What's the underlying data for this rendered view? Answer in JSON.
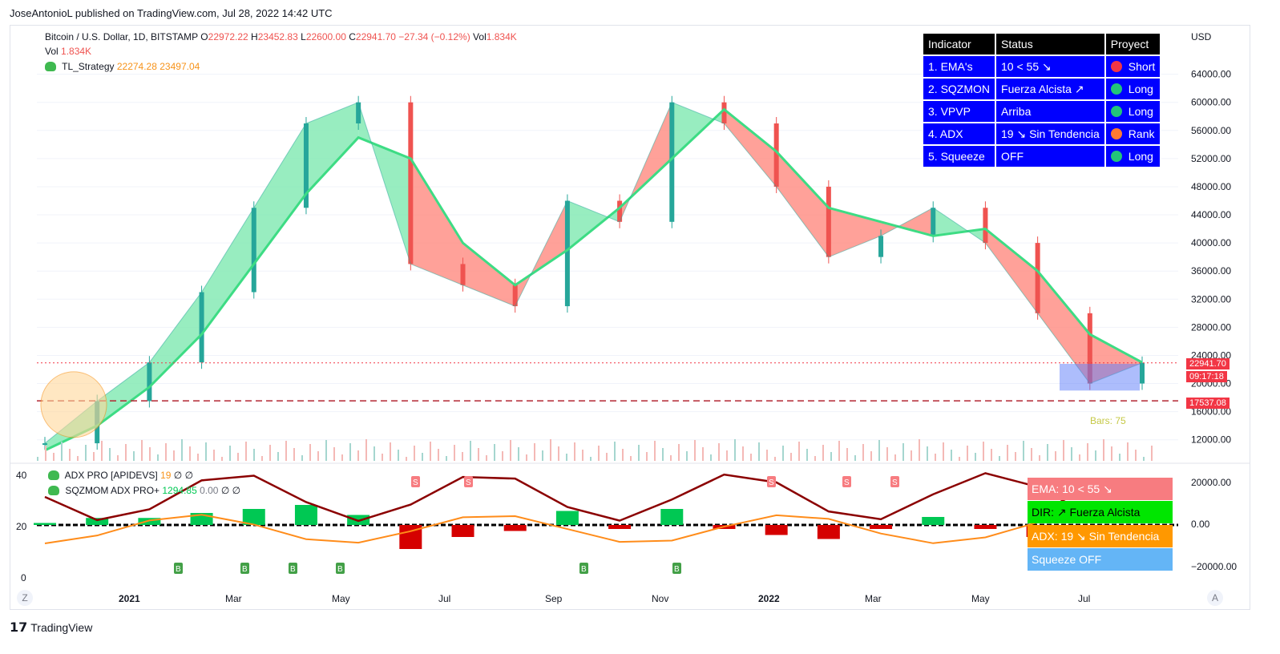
{
  "publisher": "JoseAntonioL published on TradingView.com, Jul 28, 2022 14:42 UTC",
  "header": {
    "symbol": "Bitcoin / U.S. Dollar, 1D, BITSTAMP",
    "o_lbl": "O",
    "o": "22972.22",
    "h_lbl": "H",
    "h": "23452.83",
    "l_lbl": "L",
    "l": "22600.00",
    "c_lbl": "C",
    "c": "22941.70",
    "chg": "−27.34 (−0.12%)",
    "vol_lbl": "Vol",
    "vol": "1.834K"
  },
  "vol_line": {
    "label": "Vol",
    "value": "1.834K"
  },
  "strategy": {
    "name": "TL_Strategy",
    "v1": "22274.28",
    "v2": "23497.04"
  },
  "currency": "USD",
  "indicator_table": {
    "headers": [
      "Indicator",
      "Status",
      "Proyect"
    ],
    "rows": [
      {
        "indicator": "1. EMA's",
        "status": "10 < 55 ↘",
        "proyect": "Short",
        "dot": "#f23645"
      },
      {
        "indicator": "2. SQZMON",
        "status": "Fuerza Alcista ↗",
        "proyect": "Long",
        "dot": "#22c57a"
      },
      {
        "indicator": "3. VPVP",
        "status": "Arriba",
        "proyect": "Long",
        "dot": "#22c57a"
      },
      {
        "indicator": "4. ADX",
        "status": "19 ↘ Sin Tendencia",
        "proyect": "Rank",
        "dot": "#ff7a33"
      },
      {
        "indicator": "5. Squeeze",
        "status": "OFF",
        "proyect": "Long",
        "dot": "#22c57a"
      }
    ]
  },
  "price_tags": {
    "last": "22941.70",
    "countdown": "09:17:18",
    "support": "17537.08"
  },
  "bars_label": "Bars: 75",
  "lower_pane": {
    "legend1": {
      "name": "ADX PRO [APIDEVS]",
      "v1": "19",
      "v2": "∅",
      "v3": "∅"
    },
    "legend2": {
      "name": "SQZMOM ADX PRO+",
      "v1": "1294.85",
      "v2": "0.00",
      "v3": "∅",
      "v4": "∅"
    },
    "pills": [
      {
        "text": "EMA: 10 < 55 ↘",
        "color": "#f77c80"
      },
      {
        "text": "DIR: ↗ Fuerza Alcista",
        "color": "#00e600"
      },
      {
        "text": "ADX: 19 ↘ Sin Tendencia",
        "color": "#ff9800"
      },
      {
        "text": "Squeeze OFF",
        "color": "#64b5f6"
      }
    ],
    "left_axis": [
      "40",
      "20",
      "0"
    ],
    "right_axis": [
      "20000.00",
      "0.00",
      "−20000.00"
    ],
    "s_label": "S",
    "b_label": "B"
  },
  "z_btn": "Z",
  "a_btn": "A",
  "tradingview_logo": "TradingView",
  "colors": {
    "up": "#26a69a",
    "down": "#ef5350",
    "ema_fill_up": "#7ee8b0",
    "ema_fill_down": "#ff8a80"
  },
  "chart_data": {
    "type": "line",
    "title": "Bitcoin / U.S. Dollar, 1D, BITSTAMP",
    "xlabel": "",
    "ylabel": "USD",
    "x_ticks": [
      "2021",
      "Mar",
      "May",
      "Jul",
      "Sep",
      "Nov",
      "2022",
      "Mar",
      "May",
      "Jul"
    ],
    "y_ticks": [
      "12000.00",
      "16000.00",
      "20000.00",
      "24000.00",
      "28000.00",
      "32000.00",
      "36000.00",
      "40000.00",
      "44000.00",
      "48000.00",
      "52000.00",
      "56000.00",
      "60000.00",
      "64000.00"
    ],
    "ylim": [
      9000,
      70000
    ],
    "series": [
      {
        "name": "Price",
        "x": [
          "2020-10",
          "2020-11",
          "2020-12",
          "2021-01",
          "2021-02",
          "2021-03",
          "2021-04",
          "2021-05",
          "2021-06",
          "2021-07",
          "2021-08",
          "2021-09",
          "2021-10",
          "2021-11",
          "2021-12",
          "2022-01",
          "2022-02",
          "2022-03",
          "2022-04",
          "2022-05",
          "2022-06",
          "2022-07"
        ],
        "values": [
          11500,
          17500,
          23000,
          33000,
          45000,
          57000,
          60000,
          37000,
          34000,
          31000,
          46000,
          43000,
          60000,
          57000,
          48000,
          38000,
          41000,
          45000,
          40000,
          30000,
          20000,
          22941.7
        ]
      },
      {
        "name": "EMA",
        "x": [
          "2020-10",
          "2020-11",
          "2020-12",
          "2021-01",
          "2021-02",
          "2021-03",
          "2021-04",
          "2021-05",
          "2021-06",
          "2021-07",
          "2021-08",
          "2021-09",
          "2021-10",
          "2021-11",
          "2021-12",
          "2022-01",
          "2022-02",
          "2022-03",
          "2022-04",
          "2022-05",
          "2022-06",
          "2022-07"
        ],
        "values": [
          10500,
          14000,
          19500,
          27000,
          37000,
          47000,
          55000,
          52000,
          40000,
          34000,
          39000,
          45000,
          52000,
          59000,
          53000,
          45000,
          43000,
          41000,
          42000,
          36000,
          27000,
          23000
        ]
      }
    ],
    "support_level": 17537.08
  }
}
